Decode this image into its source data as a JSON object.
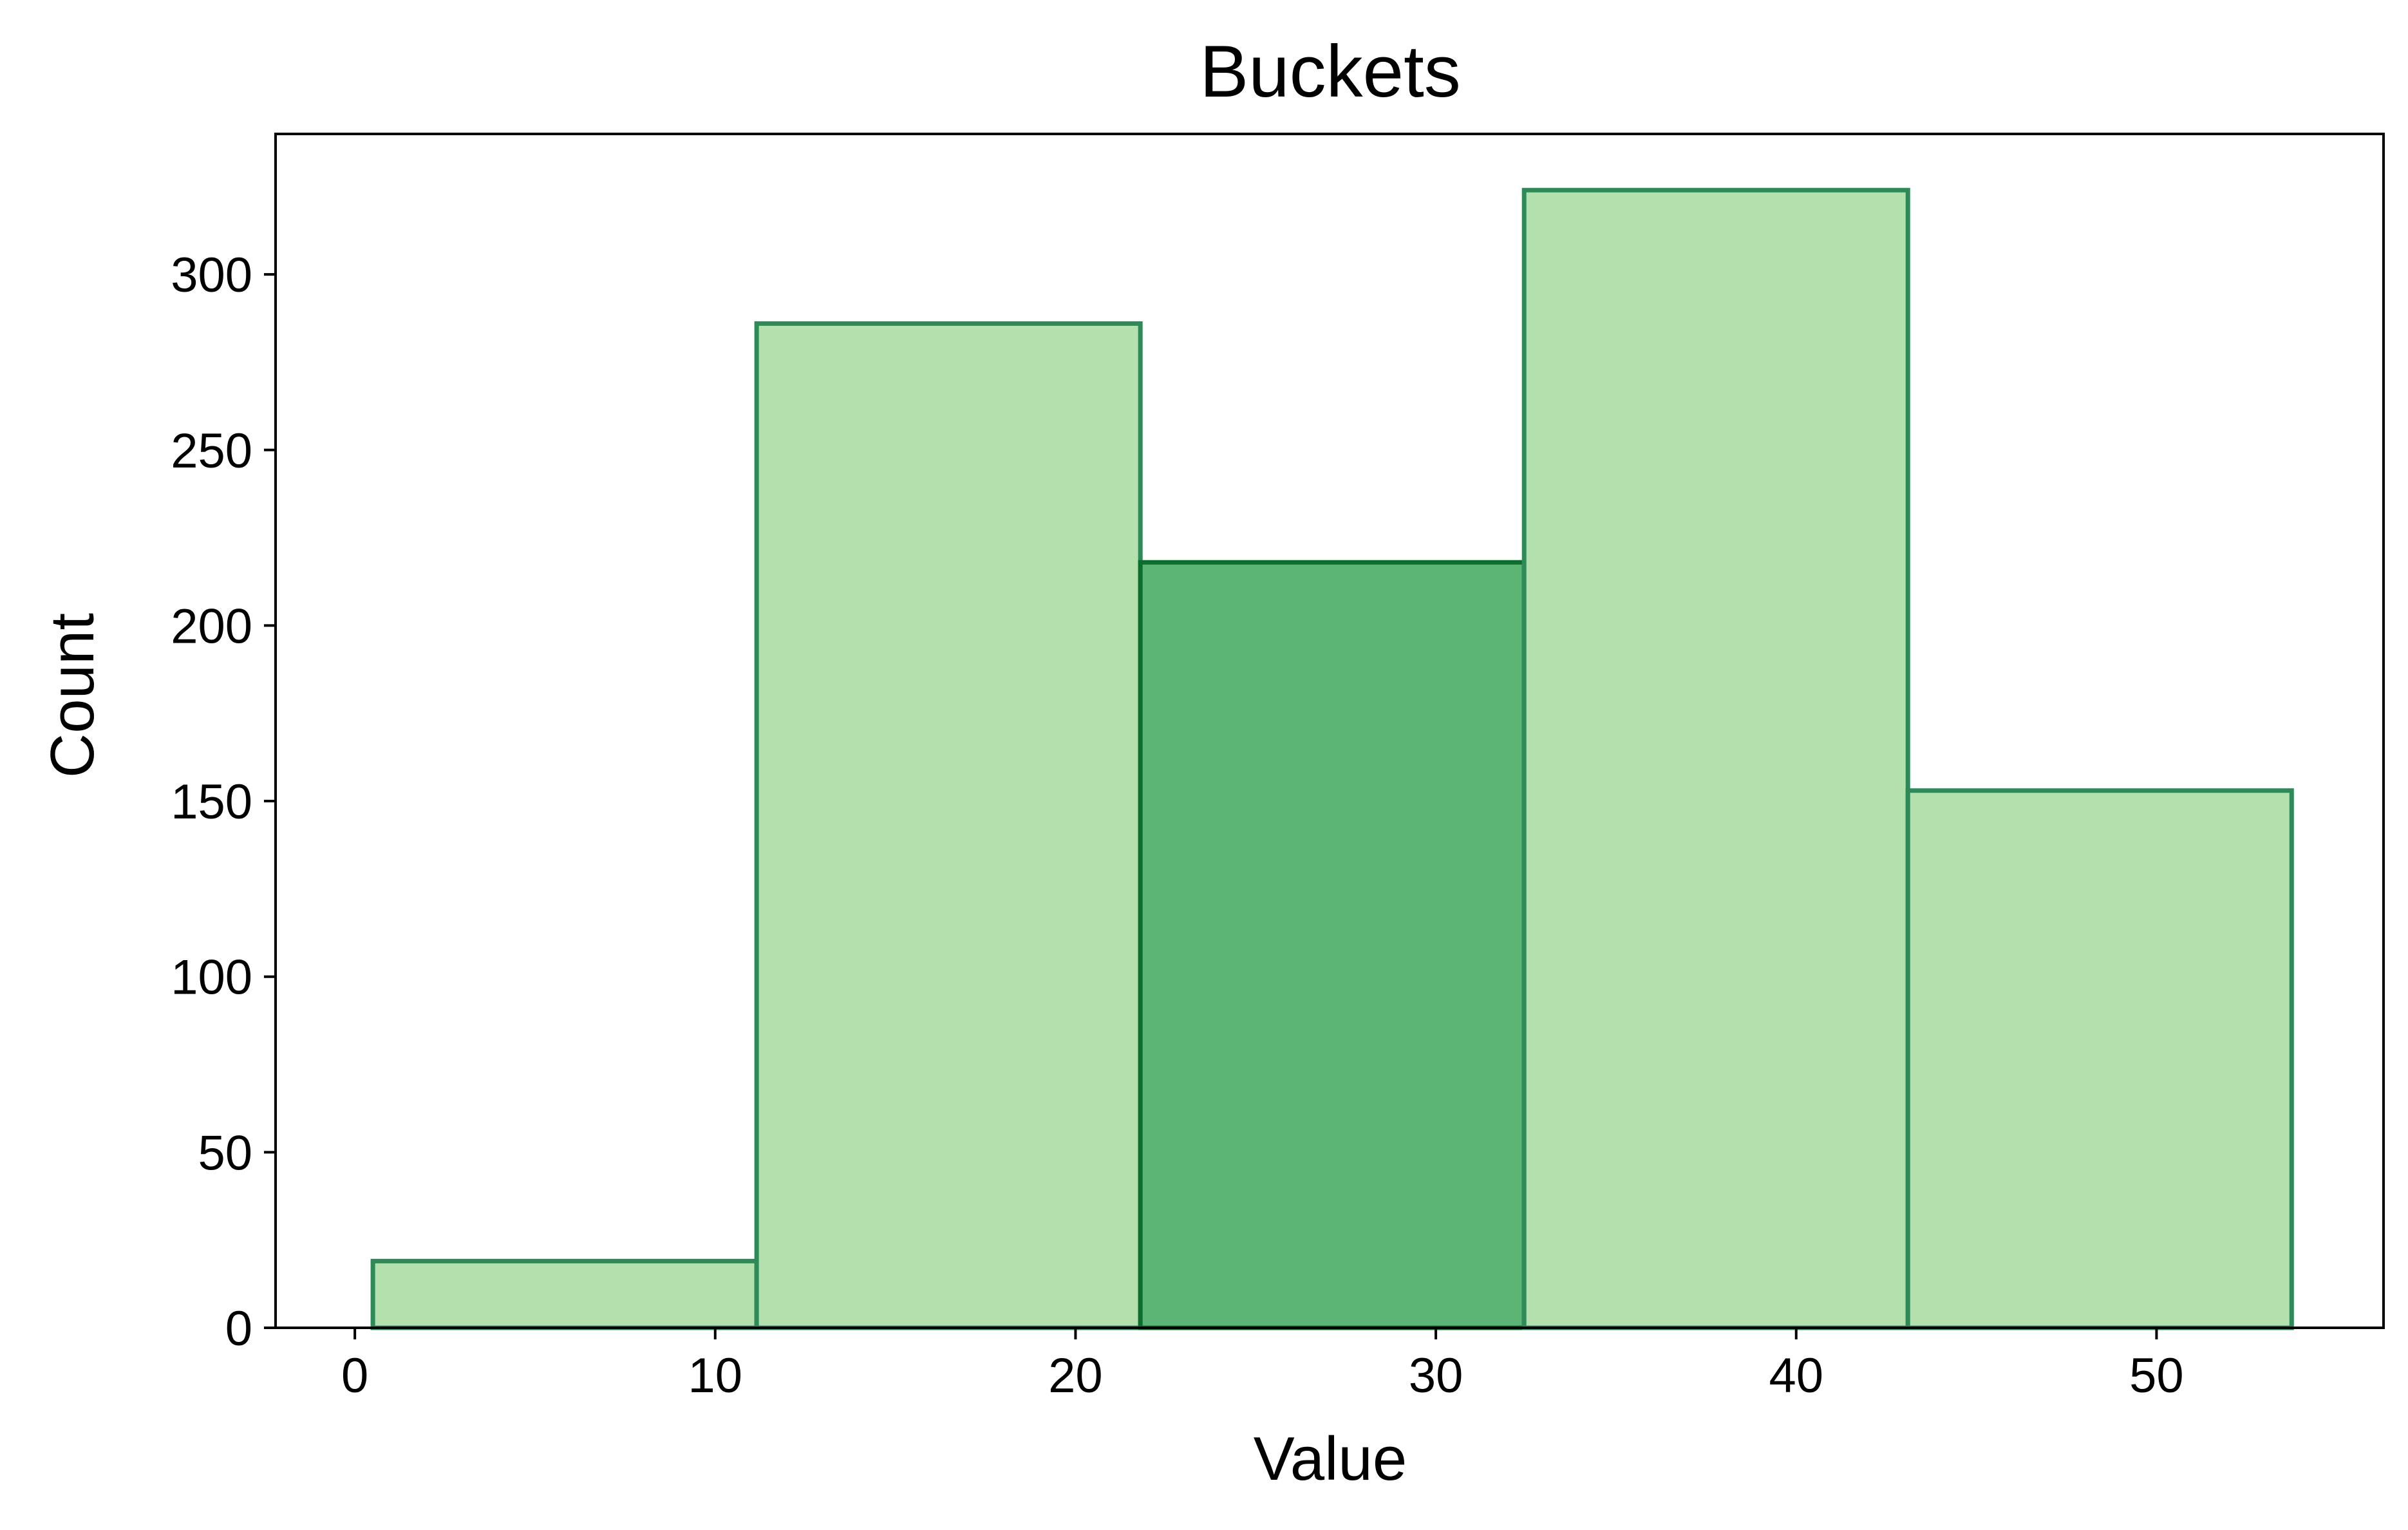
{
  "chart_data": {
    "type": "bar",
    "title": "Buckets",
    "xlabel": "Value",
    "ylabel": "Count",
    "xlim": [
      -2.2,
      56.3
    ],
    "ylim": [
      0,
      340
    ],
    "xticks": [
      0,
      10,
      20,
      30,
      40,
      50
    ],
    "yticks": [
      0,
      50,
      100,
      150,
      200,
      250,
      300
    ],
    "grid": false,
    "bins": [
      {
        "x0": 0.5,
        "x1": 11.15,
        "count": 19,
        "highlight": false
      },
      {
        "x0": 11.15,
        "x1": 21.8,
        "count": 286,
        "highlight": false
      },
      {
        "x0": 21.8,
        "x1": 32.45,
        "count": 218,
        "highlight": true
      },
      {
        "x0": 32.45,
        "x1": 43.1,
        "count": 324,
        "highlight": false
      },
      {
        "x0": 43.1,
        "x1": 53.75,
        "count": 153,
        "highlight": false
      }
    ],
    "colors": {
      "fill": "#b4e0ae",
      "highlight_fill": "#5cb574",
      "edge": "#2e8b57",
      "highlight_edge": "#0b6e2e",
      "axis": "#000000"
    }
  }
}
